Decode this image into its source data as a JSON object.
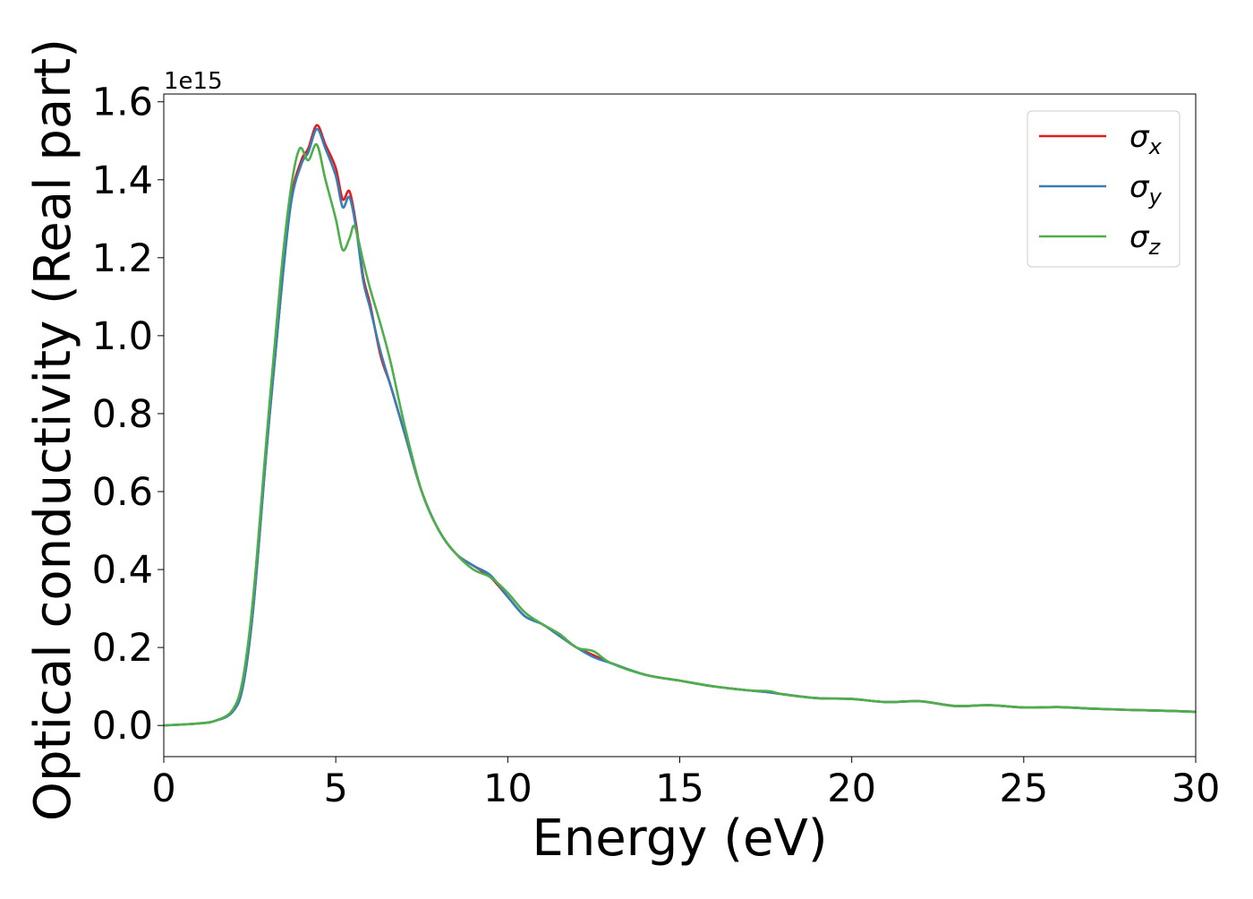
{
  "chart_data": {
    "type": "line",
    "title": "",
    "xlabel": "Energy (eV)",
    "ylabel": "Optical conductivity (Real part)",
    "y_offset_label": "1e15",
    "xlim": [
      0,
      30
    ],
    "ylim": [
      -0.08,
      1.62
    ],
    "x_ticks": [
      0,
      5,
      10,
      15,
      20,
      25,
      30
    ],
    "x_tick_labels": [
      "0",
      "5",
      "10",
      "15",
      "20",
      "25",
      "30"
    ],
    "y_ticks": [
      0.0,
      0.2,
      0.4,
      0.6,
      0.8,
      1.0,
      1.2,
      1.4,
      1.6
    ],
    "y_tick_labels": [
      "0.0",
      "0.2",
      "0.4",
      "0.6",
      "0.8",
      "1.0",
      "1.2",
      "1.4",
      "1.6"
    ],
    "grid": false,
    "legend_position": "top-right",
    "series": [
      {
        "name": "σx",
        "symbol": "σ",
        "subscript": "x",
        "color": "#e41a1c",
        "x": [
          0,
          1,
          1.5,
          2,
          2.3,
          2.6,
          3,
          3.4,
          3.7,
          4,
          4.2,
          4.45,
          4.7,
          5,
          5.2,
          5.4,
          5.6,
          5.8,
          6,
          6.3,
          6.6,
          7,
          7.5,
          8,
          8.5,
          9,
          9.5,
          10,
          10.5,
          11,
          11.5,
          12,
          12.5,
          13,
          14,
          15,
          16,
          17,
          17.6,
          18,
          19,
          20,
          21,
          22,
          23,
          24,
          25,
          26,
          27,
          28,
          29,
          30
        ],
        "y": [
          0,
          0.005,
          0.012,
          0.035,
          0.1,
          0.3,
          0.72,
          1.1,
          1.35,
          1.45,
          1.48,
          1.54,
          1.49,
          1.43,
          1.35,
          1.37,
          1.28,
          1.15,
          1.08,
          0.95,
          0.87,
          0.75,
          0.6,
          0.5,
          0.44,
          0.41,
          0.38,
          0.33,
          0.28,
          0.26,
          0.23,
          0.2,
          0.18,
          0.16,
          0.13,
          0.115,
          0.1,
          0.09,
          0.085,
          0.08,
          0.07,
          0.068,
          0.06,
          0.062,
          0.05,
          0.052,
          0.046,
          0.047,
          0.043,
          0.04,
          0.038,
          0.035
        ]
      },
      {
        "name": "σy",
        "symbol": "σ",
        "subscript": "y",
        "color": "#377eb8",
        "x": [
          0,
          1,
          1.5,
          2,
          2.3,
          2.6,
          3,
          3.4,
          3.7,
          4,
          4.2,
          4.45,
          4.7,
          5,
          5.2,
          5.4,
          5.6,
          5.8,
          6,
          6.3,
          6.6,
          7,
          7.5,
          8,
          8.5,
          9,
          9.5,
          10,
          10.5,
          11,
          11.5,
          12,
          12.5,
          13,
          14,
          15,
          16,
          17,
          17.6,
          18,
          19,
          20,
          21,
          22,
          23,
          24,
          25,
          26,
          27,
          28,
          29,
          30
        ],
        "y": [
          0,
          0.005,
          0.012,
          0.035,
          0.1,
          0.3,
          0.72,
          1.1,
          1.34,
          1.44,
          1.47,
          1.53,
          1.48,
          1.41,
          1.33,
          1.355,
          1.27,
          1.14,
          1.07,
          0.96,
          0.87,
          0.75,
          0.6,
          0.5,
          0.44,
          0.41,
          0.385,
          0.33,
          0.28,
          0.26,
          0.23,
          0.2,
          0.175,
          0.16,
          0.13,
          0.115,
          0.1,
          0.09,
          0.085,
          0.08,
          0.07,
          0.068,
          0.06,
          0.062,
          0.05,
          0.052,
          0.046,
          0.047,
          0.043,
          0.04,
          0.038,
          0.035
        ]
      },
      {
        "name": "σz",
        "symbol": "σ",
        "subscript": "z",
        "color": "#4daf4a",
        "x": [
          0,
          1,
          1.5,
          2,
          2.3,
          2.6,
          3,
          3.4,
          3.7,
          3.95,
          4.2,
          4.45,
          4.7,
          5,
          5.2,
          5.4,
          5.55,
          5.8,
          6,
          6.3,
          6.6,
          7,
          7.5,
          8,
          8.5,
          9,
          9.5,
          10,
          10.5,
          11,
          11.5,
          12,
          12.5,
          13,
          14,
          15,
          16,
          17,
          17.6,
          18,
          19,
          20,
          21,
          22,
          23,
          24,
          25,
          26,
          27,
          28,
          29,
          30
        ],
        "y": [
          0,
          0.005,
          0.012,
          0.04,
          0.12,
          0.33,
          0.75,
          1.15,
          1.38,
          1.48,
          1.45,
          1.49,
          1.4,
          1.3,
          1.22,
          1.25,
          1.28,
          1.19,
          1.12,
          1.03,
          0.93,
          0.77,
          0.6,
          0.5,
          0.44,
          0.4,
          0.38,
          0.34,
          0.29,
          0.26,
          0.235,
          0.2,
          0.19,
          0.16,
          0.13,
          0.115,
          0.1,
          0.09,
          0.088,
          0.08,
          0.07,
          0.068,
          0.06,
          0.062,
          0.05,
          0.052,
          0.046,
          0.047,
          0.043,
          0.04,
          0.038,
          0.035
        ]
      }
    ]
  }
}
